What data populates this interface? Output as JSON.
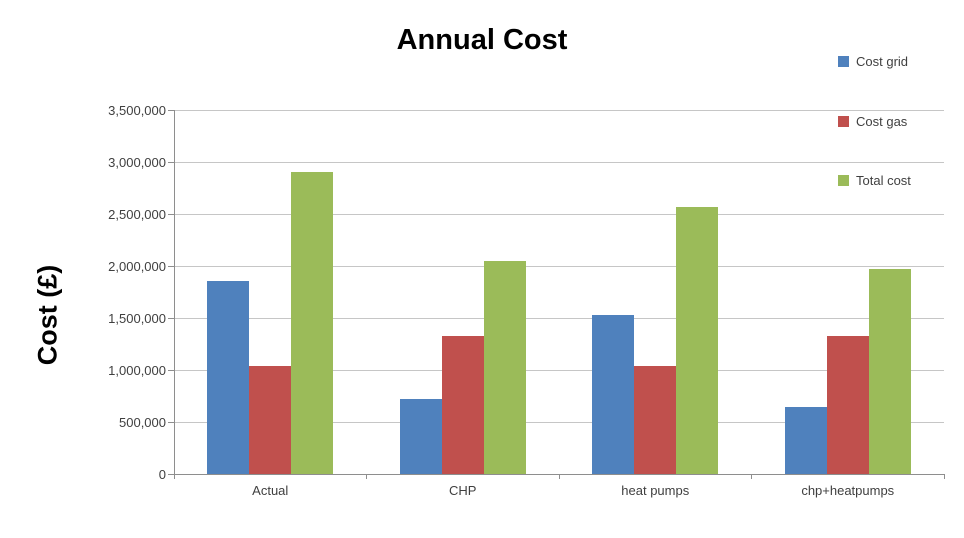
{
  "chart_data": {
    "type": "bar",
    "title": "Annual Cost",
    "xlabel": "",
    "ylabel": "Cost (£)",
    "categories": [
      "Actual",
      "CHP",
      "heat pumps",
      "chp+heatpumps"
    ],
    "series": [
      {
        "name": "Cost grid",
        "color": "#4f81bd",
        "values": [
          1860000,
          720000,
          1530000,
          640000
        ]
      },
      {
        "name": "Cost gas",
        "color": "#c0504d",
        "values": [
          1040000,
          1330000,
          1040000,
          1330000
        ]
      },
      {
        "name": "Total cost",
        "color": "#9bbb59",
        "values": [
          2900000,
          2050000,
          2570000,
          1970000
        ]
      }
    ],
    "ylim": [
      0,
      3500000
    ],
    "ytick_step": 500000,
    "ytick_labels": [
      "0",
      "500,000",
      "1,000,000",
      "1,500,000",
      "2,000,000",
      "2,500,000",
      "3,000,000",
      "3,500,000"
    ],
    "grid": true,
    "legend_position": "right-top"
  },
  "colors": {
    "background": "#ffffff",
    "gridline": "#c6c6c6",
    "axis_line": "#8e8e8e",
    "tick_text": "#3f3f3f",
    "title_text": "#000000"
  }
}
